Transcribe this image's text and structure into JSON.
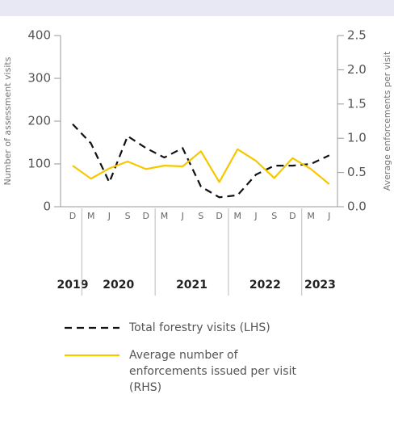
{
  "chart_data": {
    "type": "line",
    "ylabel": "Number of assessment visits",
    "y2label": "Average enforcements per visit",
    "categories": [
      "D",
      "M",
      "J",
      "S",
      "D",
      "M",
      "J",
      "S",
      "D",
      "M",
      "J",
      "S",
      "D",
      "M",
      "J"
    ],
    "year_groups": [
      {
        "label": "2019",
        "count": 1
      },
      {
        "label": "2020",
        "count": 4
      },
      {
        "label": "2021",
        "count": 4
      },
      {
        "label": "2022",
        "count": 4
      },
      {
        "label": "2023",
        "count": 2
      }
    ],
    "ylim": [
      0,
      400
    ],
    "yticks": [
      0,
      100,
      200,
      300,
      400
    ],
    "y2lim": [
      0,
      2.5
    ],
    "y2ticks": [
      {
        "value": 0,
        "label": "0.0"
      },
      {
        "value": 0.5,
        "label": "0.5"
      },
      {
        "value": 1,
        "label": "1.0"
      },
      1.5,
      {
        "value": 2,
        "label": "2.0"
      },
      {
        "value": 2.5,
        "label": "2.5"
      }
    ],
    "series": [
      {
        "name": "Total forestry visits (LHS)",
        "color": "#111111",
        "dashed": true,
        "values": [
          193,
          148,
          57,
          165,
          137,
          115,
          137,
          47,
          22,
          27,
          75,
          96,
          96,
          100,
          120
        ]
      },
      {
        "name": "Average number of enforcements issued per visit (RHS)",
        "color": "#f5c800",
        "axis": "y2",
        "values": [
          0.6,
          0.41,
          0.56,
          0.66,
          0.55,
          0.6,
          0.59,
          0.81,
          0.36,
          0.84,
          0.67,
          0.42,
          0.71,
          0.55,
          0.33
        ]
      }
    ]
  }
}
